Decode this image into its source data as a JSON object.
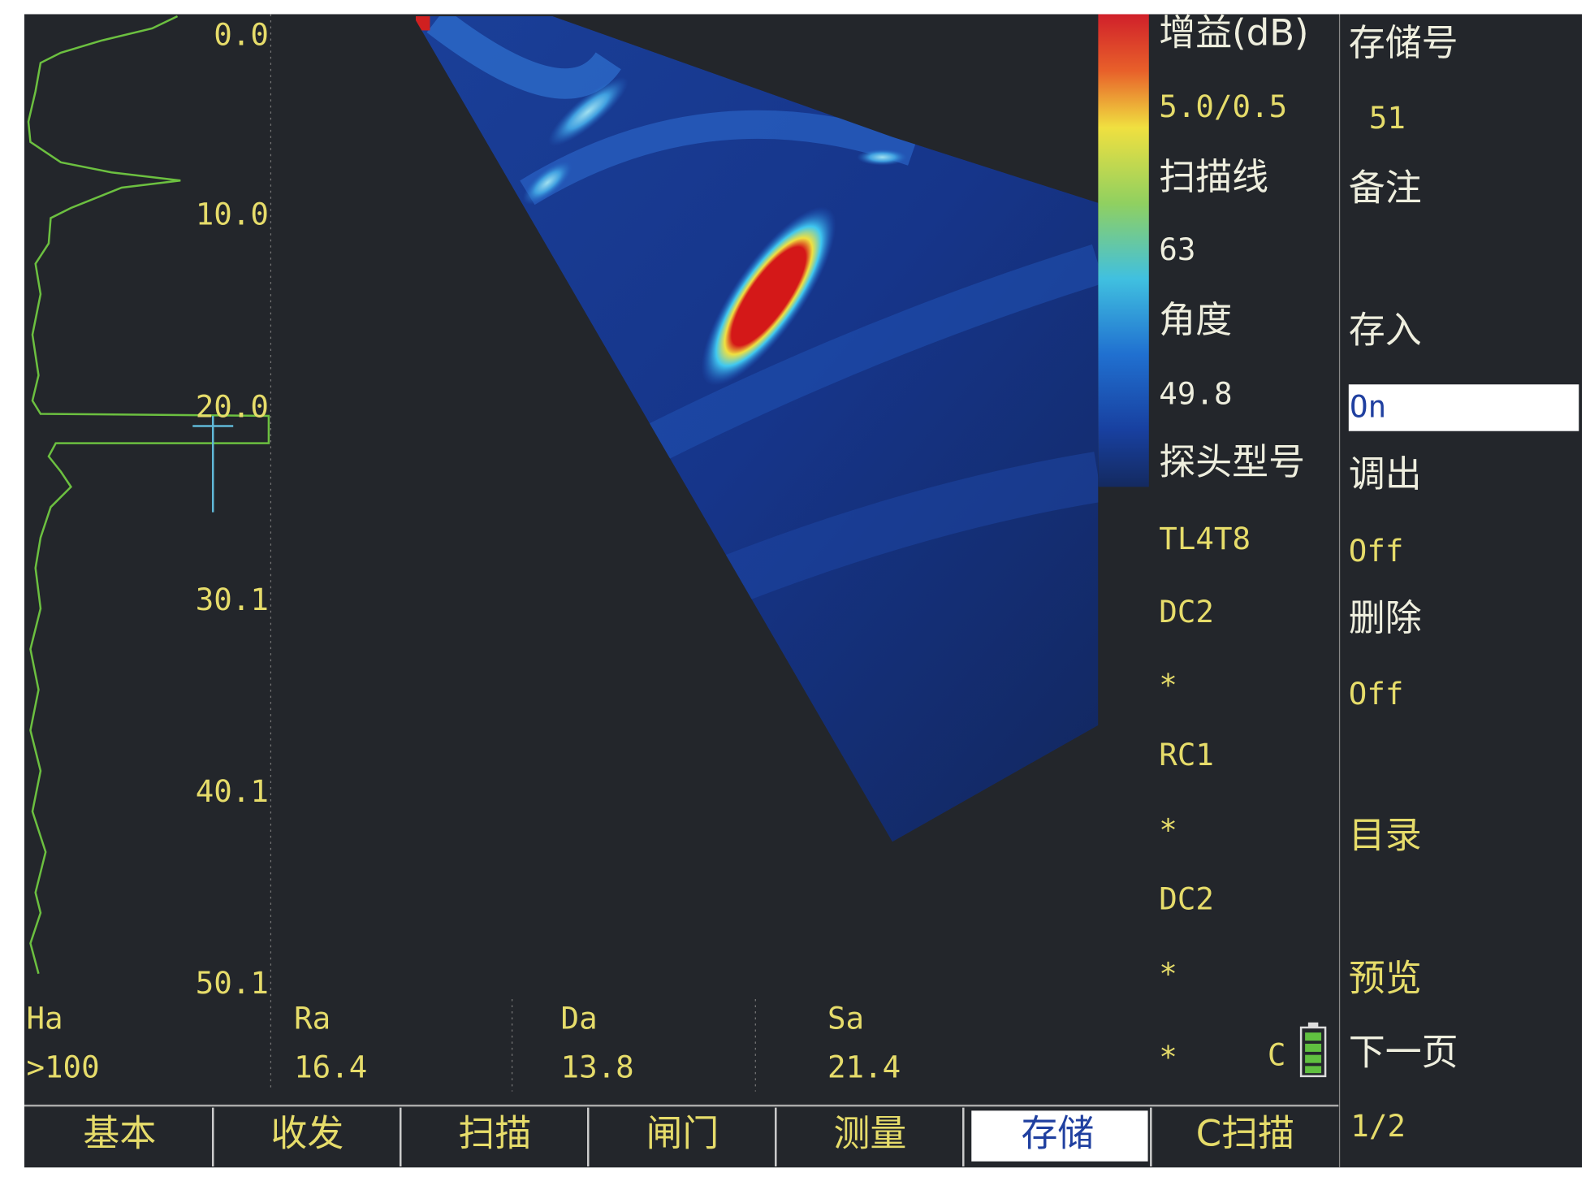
{
  "depth_scale": [
    "0.0",
    "10.0",
    "20.0",
    "30.1",
    "40.1",
    "50.1"
  ],
  "readouts": [
    {
      "label": "Ha",
      "value": ">100"
    },
    {
      "label": "Ra",
      "value": "16.4"
    },
    {
      "label": "Da",
      "value": "13.8"
    },
    {
      "label": "Sa",
      "value": "21.4"
    }
  ],
  "info_panel": {
    "gain_label": "增益(dB)",
    "gain_value": "5.0/0.5",
    "scanline_label": "扫描线",
    "scanline_value": "63",
    "angle_label": "角度",
    "angle_value": "49.8",
    "probe_label": "探头型号",
    "probe_lines": [
      "TL4T8",
      "DC2",
      "*",
      "RC1",
      "*",
      "DC2",
      "*",
      "*"
    ],
    "battery_label": "C"
  },
  "menu": [
    {
      "label": "存储号",
      "value": "51"
    },
    {
      "label": "备注"
    },
    {
      "label": "存入",
      "value": "On"
    },
    {
      "label": "调出",
      "value": "Off"
    },
    {
      "label": "删除",
      "value": "Off"
    },
    {
      "label": "目录"
    },
    {
      "label": "预览"
    },
    {
      "label": "下一页",
      "value": "1/2"
    }
  ],
  "tabs": [
    "基本",
    "收发",
    "扫描",
    "闸门",
    "测量",
    "存储",
    "C扫描"
  ]
}
